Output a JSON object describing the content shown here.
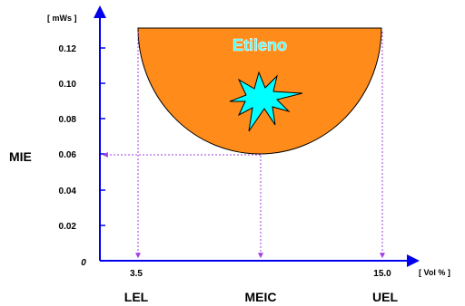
{
  "colors": {
    "region_fill": "#ff8c1a",
    "spark_fill": "#00ffff",
    "axis": "#0000ee",
    "guide": "#a040e0"
  },
  "icons": {
    "spark": "explosion-spark-icon"
  },
  "y_axis": {
    "unit": "[ mWs ]",
    "name": "MIE",
    "ticks": [
      {
        "value": 0.12,
        "label": "0.12"
      },
      {
        "value": 0.1,
        "label": "0.10"
      },
      {
        "value": 0.08,
        "label": "0.08"
      },
      {
        "value": 0.06,
        "label": "0.06"
      },
      {
        "value": 0.04,
        "label": "0.04"
      },
      {
        "value": 0.02,
        "label": "0.02"
      }
    ],
    "origin_label": "0"
  },
  "x_axis": {
    "unit": "[ Vol % ]",
    "tick_left": "3.5",
    "tick_right": "15.0",
    "markers": {
      "left": "LEL",
      "center": "MEIC",
      "right": "UEL"
    }
  },
  "region": {
    "name": "Etileno",
    "lel": 3.5,
    "uel": 15.0,
    "min_energy": 0.06,
    "top_energy": 0.13
  }
}
